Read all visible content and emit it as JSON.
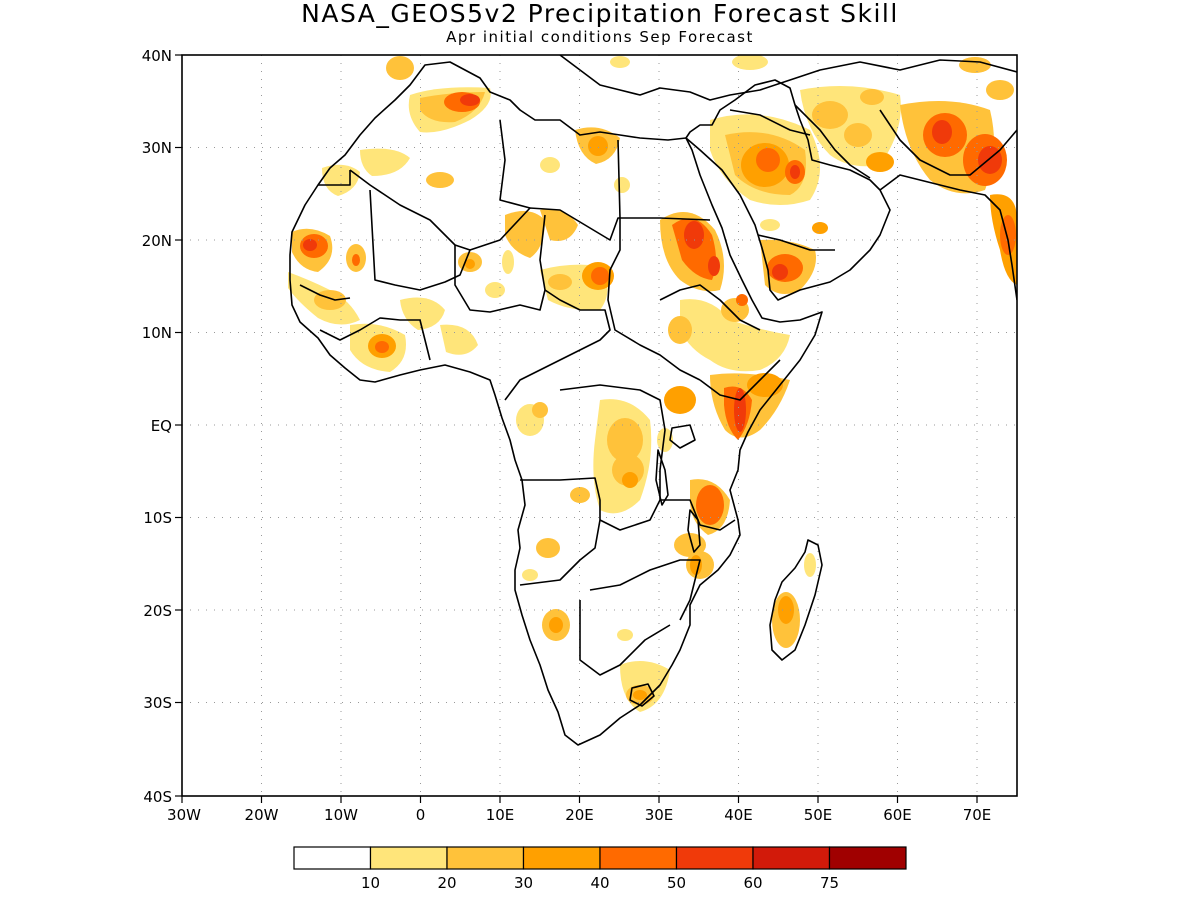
{
  "title": "NASA_GEOS5v2 Precipitation Forecast Skill",
  "subtitle": "Apr initial conditions  Sep Forecast",
  "map": {
    "lon_range": [
      -30,
      75
    ],
    "lat_range": [
      -40,
      40
    ],
    "x_ticks": [
      "30W",
      "20W",
      "10W",
      "0",
      "10E",
      "20E",
      "30E",
      "40E",
      "50E",
      "60E",
      "70E"
    ],
    "y_ticks": [
      "40N",
      "30N",
      "20N",
      "10N",
      "EQ",
      "10S",
      "20S",
      "30S",
      "40S"
    ],
    "grid": true
  },
  "colorbar": {
    "labels": [
      "10",
      "20",
      "30",
      "40",
      "50",
      "60",
      "75"
    ],
    "colors": [
      "#ffffff",
      "#ffe57a",
      "#ffc23a",
      "#ffa000",
      "#ff6a00",
      "#f03a0a",
      "#d21a0a",
      "#a00000"
    ]
  }
}
